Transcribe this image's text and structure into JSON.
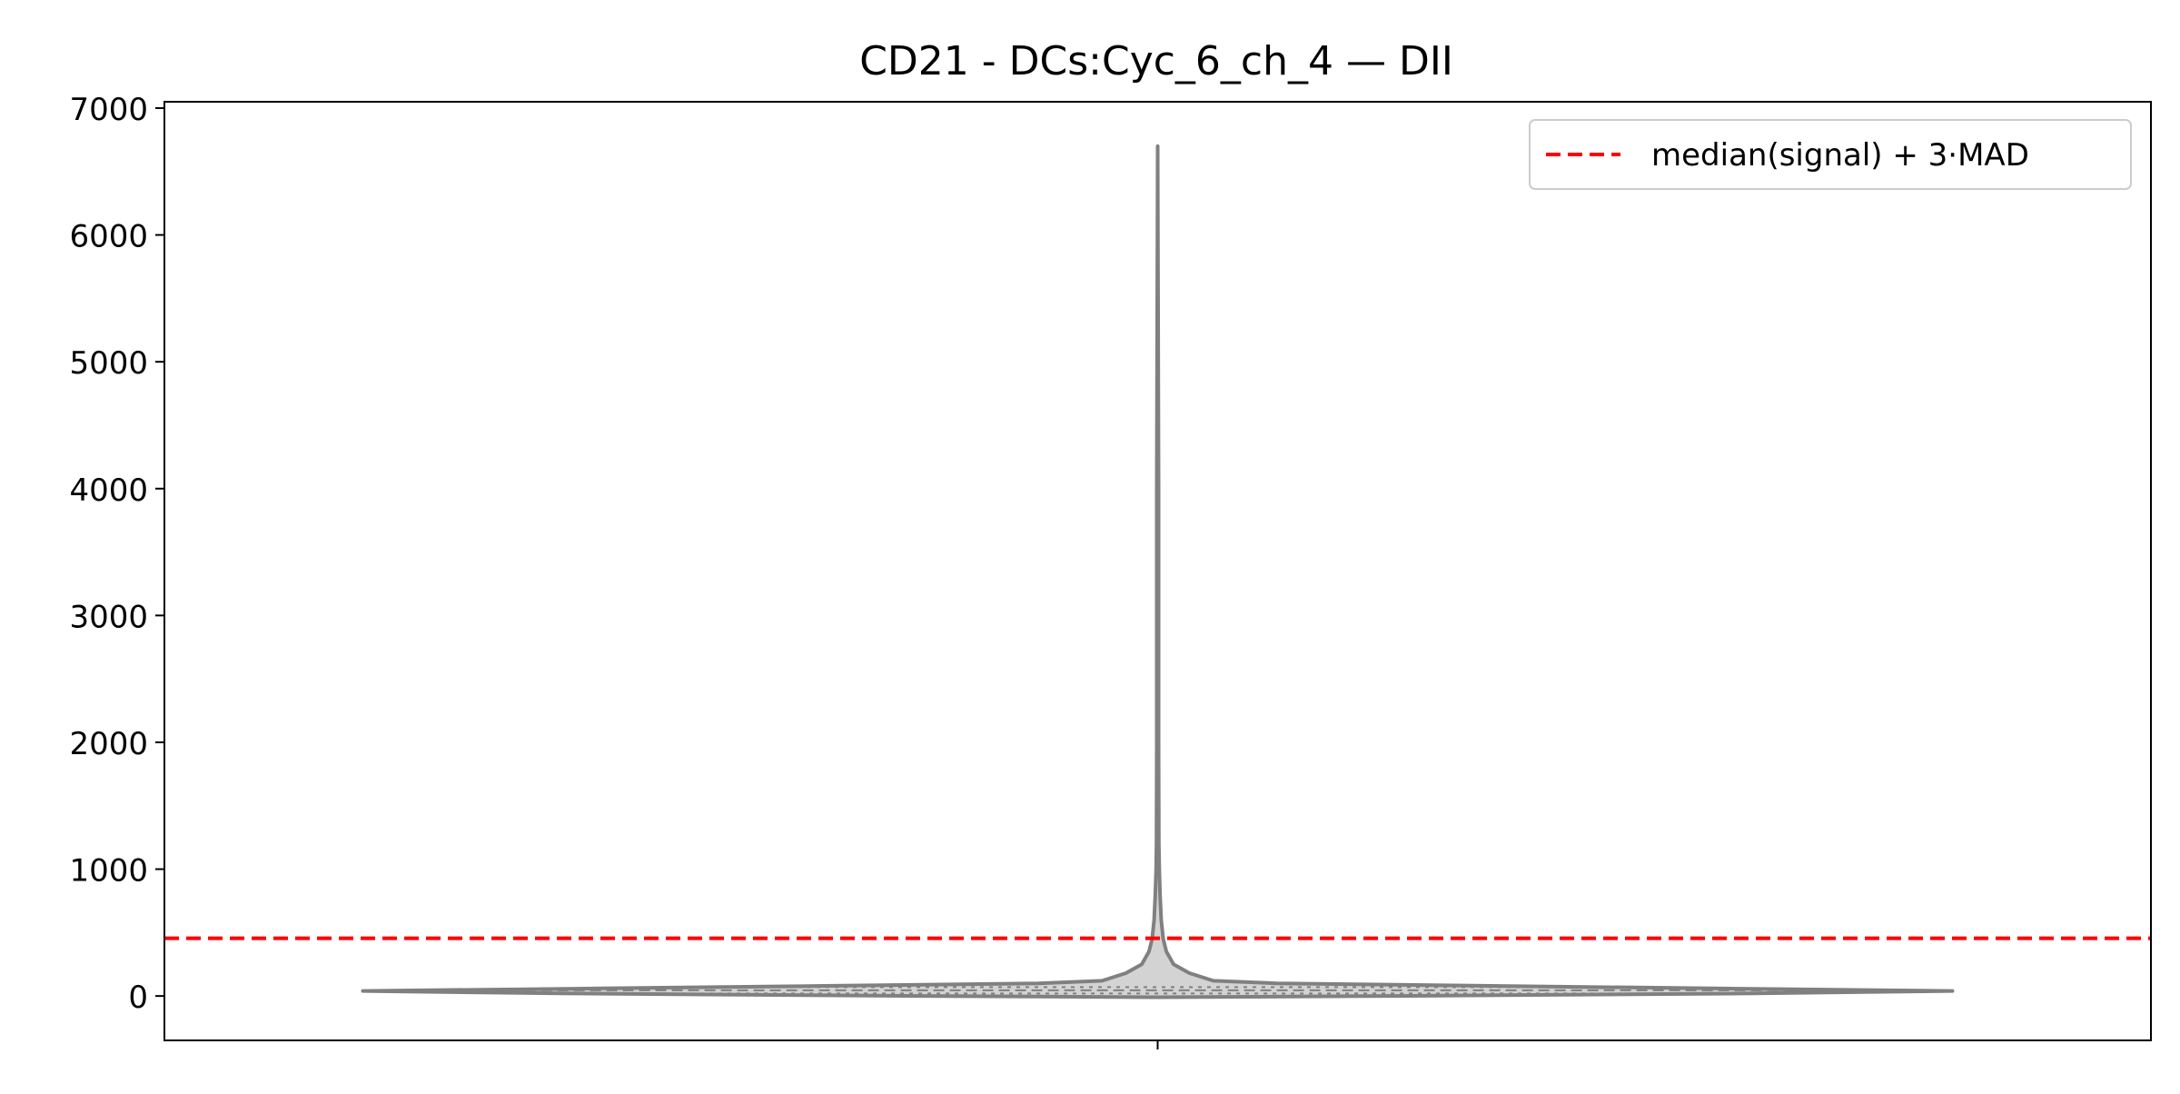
{
  "chart_data": {
    "type": "violin",
    "title": "CD21 - DCs:Cyc_6_ch_4 — DII",
    "xlabel": "",
    "ylabel": "",
    "ylim": [
      -350,
      7050
    ],
    "yticks": [
      0,
      1000,
      2000,
      3000,
      4000,
      5000,
      6000,
      7000
    ],
    "grid": false,
    "legend": {
      "placement": "top-right",
      "entries": [
        {
          "label": "median(signal) + 3·MAD",
          "style": "dashed",
          "color": "#ff0000"
        }
      ]
    },
    "series": [
      {
        "kind": "violin",
        "fill_color": "#d3d3d3",
        "edge_color": "#808080",
        "min": -10,
        "max": 6700,
        "median": 45,
        "q1": 20,
        "q3": 70,
        "density_profile": [
          {
            "y": -10,
            "w": 0.0
          },
          {
            "y": 0,
            "w": 0.3
          },
          {
            "y": 20,
            "w": 0.75
          },
          {
            "y": 40,
            "w": 1.0
          },
          {
            "y": 60,
            "w": 0.7
          },
          {
            "y": 80,
            "w": 0.42
          },
          {
            "y": 100,
            "w": 0.15
          },
          {
            "y": 120,
            "w": 0.07
          },
          {
            "y": 180,
            "w": 0.04
          },
          {
            "y": 250,
            "w": 0.02
          },
          {
            "y": 350,
            "w": 0.011
          },
          {
            "y": 450,
            "w": 0.007
          },
          {
            "y": 600,
            "w": 0.0045
          },
          {
            "y": 800,
            "w": 0.003
          },
          {
            "y": 1000,
            "w": 0.002
          },
          {
            "y": 1200,
            "w": 0.0015
          },
          {
            "y": 2000,
            "w": 0.0012
          },
          {
            "y": 4000,
            "w": 0.0011
          },
          {
            "y": 6700,
            "w": 0.0
          }
        ]
      }
    ],
    "reference_lines": [
      {
        "label": "median(signal) + 3·MAD",
        "y": 455,
        "color": "#ff0000",
        "style": "dashed"
      }
    ]
  }
}
